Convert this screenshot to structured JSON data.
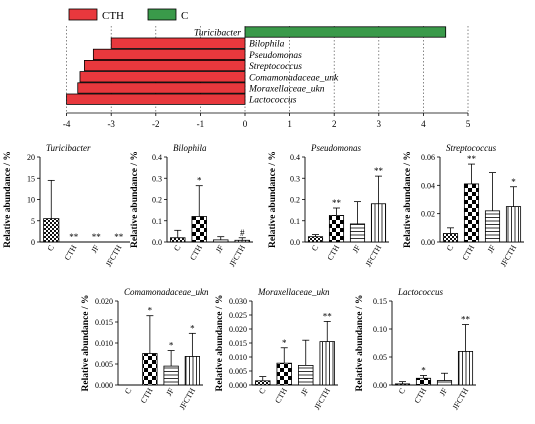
{
  "colors": {
    "cth": "#e8383d",
    "c": "#3a9a4a",
    "ink": "#000000"
  },
  "legend": [
    {
      "label": "CTH",
      "color": "#e8383d"
    },
    {
      "label": "C",
      "color": "#3a9a4a"
    }
  ],
  "chart_data": [
    {
      "type": "bar",
      "orientation": "horizontal",
      "categories": [
        "Turicibacter",
        "Bilophila",
        "Pseudomonas",
        "Streptococcus",
        "Comamonadaceae_unk",
        "Moraxellaceae_ukn",
        "Lactococcus"
      ],
      "values": [
        4.5,
        -3.0,
        -3.4,
        -3.6,
        -3.7,
        -3.75,
        -4.0
      ],
      "series": [
        {
          "name": "CTH",
          "color": "#e8383d"
        },
        {
          "name": "C",
          "color": "#3a9a4a"
        }
      ],
      "xlim": [
        -4,
        5
      ],
      "xticks": [
        -4,
        -3,
        -2,
        -1,
        0,
        1,
        2,
        3,
        4,
        5
      ],
      "legend_position": "top-left"
    },
    {
      "type": "bar",
      "title": "Turicibacter",
      "ylabel": "Relative abundance / %",
      "categories": [
        "C",
        "CTH",
        "JF",
        "JFCTH"
      ],
      "values": [
        5.5,
        0,
        0,
        0
      ],
      "errors": [
        9,
        0,
        0,
        0
      ],
      "annotations": [
        "",
        "**",
        "**",
        "**"
      ],
      "ylim": [
        0,
        20
      ],
      "yticks": [
        "0",
        "5",
        "10",
        "15",
        "20"
      ]
    },
    {
      "type": "bar",
      "title": "Bilophila",
      "ylabel": "Relative abundance / %",
      "categories": [
        "C",
        "CTH",
        "JF",
        "JFCTH"
      ],
      "values": [
        0.02,
        0.12,
        0.01,
        0.008
      ],
      "errors": [
        0.035,
        0.145,
        0.015,
        0.012
      ],
      "annotations": [
        "",
        "*",
        "",
        "#"
      ],
      "ylim": [
        0,
        0.4
      ],
      "yticks": [
        "0.0",
        "0.1",
        "0.2",
        "0.3",
        "0.4"
      ]
    },
    {
      "type": "bar",
      "title": "Pseudomonas",
      "ylabel": "Relative abundance / %",
      "categories": [
        "C",
        "CTH",
        "JF",
        "JFCTH"
      ],
      "values": [
        0.025,
        0.125,
        0.085,
        0.18
      ],
      "errors": [
        0.01,
        0.035,
        0.105,
        0.13
      ],
      "annotations": [
        "",
        "**",
        "",
        "**"
      ],
      "ylim": [
        0,
        0.4
      ],
      "yticks": [
        "0.0",
        "0.1",
        "0.2",
        "0.3",
        "0.4"
      ]
    },
    {
      "type": "bar",
      "title": "Streptococcus",
      "ylabel": "Relative abundance / %",
      "categories": [
        "C",
        "CTH",
        "JF",
        "JFCTH"
      ],
      "values": [
        0.006,
        0.041,
        0.022,
        0.025
      ],
      "errors": [
        0.004,
        0.014,
        0.027,
        0.014
      ],
      "annotations": [
        "",
        "**",
        "",
        "*"
      ],
      "ylim": [
        0,
        0.06
      ],
      "yticks": [
        "0.00",
        "0.02",
        "0.04",
        "0.06"
      ]
    },
    {
      "type": "bar",
      "title": "Comamonadaceae_ukn",
      "ylabel": "Relative abundance / %",
      "categories": [
        "C",
        "CTH",
        "JF",
        "JFCTH"
      ],
      "values": [
        0,
        0.0075,
        0.0045,
        0.0068
      ],
      "errors": [
        0,
        0.009,
        0.0037,
        0.0055
      ],
      "annotations": [
        "",
        "*",
        "*",
        "*"
      ],
      "ylim": [
        0,
        0.02
      ],
      "yticks": [
        "0.000",
        "0.005",
        "0.010",
        "0.015",
        "0.020"
      ]
    },
    {
      "type": "bar",
      "title": "Moraxellaceae_ukn",
      "ylabel": "Relative abundance / %",
      "categories": [
        "C",
        "CTH",
        "JF",
        "JFCTH"
      ],
      "values": [
        0.0015,
        0.0078,
        0.007,
        0.0155
      ],
      "errors": [
        0.0015,
        0.0055,
        0.009,
        0.0072
      ],
      "annotations": [
        "",
        "*",
        "",
        "**"
      ],
      "ylim": [
        0,
        0.03
      ],
      "yticks": [
        "0.000",
        "0.005",
        "0.010",
        "0.015",
        "0.020",
        "0.025",
        "0.030"
      ]
    },
    {
      "type": "bar",
      "title": "Lactococcus",
      "ylabel": "Relative abundance / %",
      "categories": [
        "C",
        "CTH",
        "JF",
        "JFCTH"
      ],
      "values": [
        0.002,
        0.012,
        0.008,
        0.06
      ],
      "errors": [
        0.004,
        0.005,
        0.013,
        0.048
      ],
      "annotations": [
        "",
        "*",
        "",
        "**"
      ],
      "ylim": [
        0,
        0.15
      ],
      "yticks": [
        "0.00",
        "0.05",
        "0.10",
        "0.15"
      ]
    }
  ]
}
